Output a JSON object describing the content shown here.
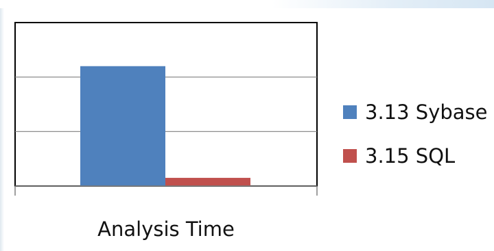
{
  "chart_data": {
    "type": "bar",
    "categories": [
      "Analysis Time"
    ],
    "series": [
      {
        "name": "3.13 Sybase",
        "values": [
          2.2
        ],
        "color": "#4f81bd"
      },
      {
        "name": "3.15 SQL",
        "values": [
          0.15
        ],
        "color": "#c0504d"
      }
    ],
    "ylim": [
      0,
      3
    ],
    "y_gridlines": [
      1,
      2
    ],
    "grid": true,
    "legend_position": "right",
    "title": "",
    "xlabel": "",
    "ylabel": ""
  }
}
